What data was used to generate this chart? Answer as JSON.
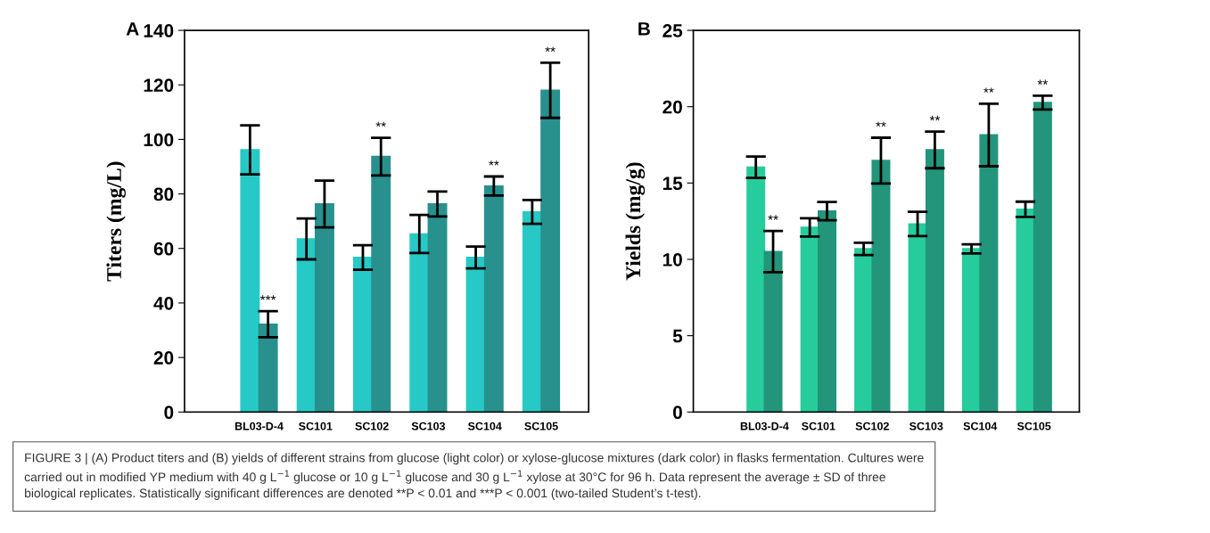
{
  "chart_data": [
    {
      "type": "bar",
      "title": "A",
      "ylabel": "Titers (mg/L)",
      "categories": [
        "BL03-D-4",
        "SC101",
        "SC102",
        "SC103",
        "SC104",
        "SC105"
      ],
      "series": [
        {
          "color": "#26c9c6",
          "values": [
            96.2,
            63.5,
            56.7,
            65.3,
            56.7,
            73.4
          ],
          "errors": [
            9,
            7.5,
            4.5,
            7,
            4,
            4.4
          ]
        },
        {
          "color": "#28918e",
          "values": [
            32.2,
            76.3,
            93.7,
            76.3,
            82.9,
            118
          ],
          "errors": [
            4.8,
            8.6,
            6.9,
            4.6,
            3.5,
            10.1
          ]
        }
      ],
      "ylim": [
        0,
        140
      ],
      "yticks": [
        0,
        20,
        40,
        60,
        80,
        100,
        120,
        140
      ],
      "grid": false,
      "annotations": [
        {
          "text": "***",
          "x": "BL03-D-4",
          "y": 37
        },
        {
          "text": "**",
          "x": "SC102",
          "y": 100.6
        },
        {
          "text": "**",
          "x": "SC104",
          "y": 86.4
        },
        {
          "text": "**",
          "x": "SC105",
          "y": 128.1
        }
      ]
    },
    {
      "type": "bar",
      "title": "B",
      "ylabel": "Yields (mg/g)",
      "categories": [
        "BL03-D-4",
        "SC101",
        "SC102",
        "SC103",
        "SC104",
        "SC105"
      ],
      "series": [
        {
          "color": "#26cc9c",
          "values": [
            16.04,
            12.09,
            10.69,
            12.32,
            10.69,
            13.28
          ],
          "errors": [
            0.7,
            0.6,
            0.4,
            0.8,
            0.3,
            0.5
          ]
        },
        {
          "color": "#23957a",
          "values": [
            10.51,
            13.16,
            16.47,
            17.17,
            18.15,
            20.27
          ],
          "errors": [
            1.35,
            0.6,
            1.5,
            1.2,
            2.05,
            0.45
          ]
        }
      ],
      "ylim": [
        0,
        25
      ],
      "yticks": [
        0,
        5,
        10,
        15,
        20,
        25
      ],
      "grid": false,
      "annotations": [
        {
          "text": "**",
          "x": "BL03-D-4",
          "y": 11.86
        },
        {
          "text": "**",
          "x": "SC102",
          "y": 17.97
        },
        {
          "text": "**",
          "x": "SC103",
          "y": 18.37
        },
        {
          "text": "**",
          "x": "SC104",
          "y": 20.2
        },
        {
          "text": "**",
          "x": "SC105",
          "y": 20.72
        },
        "FIGURE 3 | (A) Product titers and (B) yields of different strains from glucose (light color) or xylose-glucose mixtures (dark color) in flasks fermentation. Cultures were\ncarried out in modified YP medium with 40 g L$^{−1}$ glucose or 10 g L$^{−1}$ glucose and 30 g L$^{−1}$ xylose at 30°C for 96 h. Data represent the average ± SD of three\nbiological replicates. Statistically significant differences are denoted **P < 0.01 and ***P < 0.001 (two-tailed Student’s t-test)."
      ]
    }
  ]
}
